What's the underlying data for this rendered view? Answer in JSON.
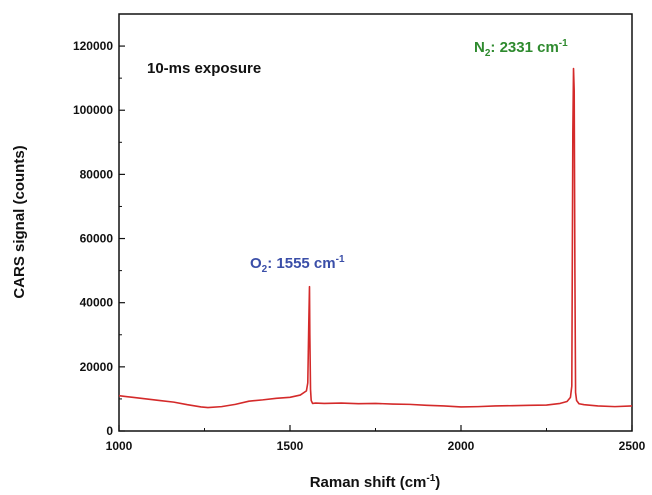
{
  "chart_data": {
    "type": "line",
    "title": "",
    "xlabel": "Raman shift (cm",
    "xlabel_sup": "-1",
    "xlabel_end": ")",
    "ylabel": "CARS signal (counts)",
    "xlim": [
      1000,
      2500
    ],
    "ylim": [
      0,
      130000
    ],
    "x_ticks": [
      1000,
      1500,
      2000,
      2500
    ],
    "y_ticks": [
      0,
      20000,
      40000,
      60000,
      80000,
      100000,
      120000
    ],
    "grid": false,
    "series": [
      {
        "color": "#d42a2a",
        "x": [
          1000,
          1040,
          1080,
          1120,
          1160,
          1200,
          1240,
          1260,
          1300,
          1340,
          1380,
          1420,
          1460,
          1500,
          1530,
          1548,
          1552,
          1555,
          1557,
          1558,
          1560,
          1562,
          1566,
          1575,
          1600,
          1650,
          1700,
          1750,
          1800,
          1850,
          1900,
          1950,
          2000,
          2050,
          2100,
          2150,
          2200,
          2250,
          2290,
          2310,
          2320,
          2324,
          2327,
          2329,
          2331,
          2333,
          2335,
          2338,
          2345,
          2360,
          2400,
          2450,
          2500
        ],
        "y": [
          11000,
          10500,
          10000,
          9500,
          9000,
          8200,
          7500,
          7300,
          7600,
          8300,
          9300,
          9700,
          10200,
          10500,
          11200,
          12500,
          15000,
          34000,
          45000,
          30000,
          13000,
          9500,
          8600,
          8700,
          8600,
          8700,
          8500,
          8600,
          8400,
          8300,
          8000,
          7800,
          7500,
          7600,
          7800,
          7900,
          8000,
          8100,
          8600,
          9200,
          10500,
          14000,
          93000,
          113000,
          106000,
          50000,
          12000,
          9500,
          8500,
          8200,
          7800,
          7600,
          7800
        ]
      }
    ],
    "annotations": [
      {
        "species": "O",
        "sub": "2",
        "text": ": 1555 cm",
        "sup": "-1",
        "color": "#3a4ea8"
      },
      {
        "species": "N",
        "sub": "2",
        "text": ": 2331 cm",
        "sup": "-1",
        "color": "#2e8a2e"
      }
    ],
    "inset_text": "10-ms exposure"
  }
}
